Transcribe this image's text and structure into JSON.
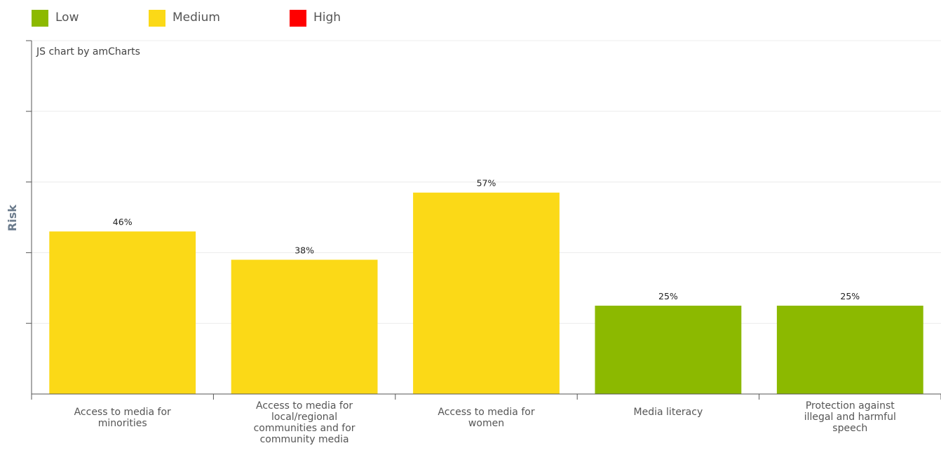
{
  "legend": [
    {
      "label": "Low",
      "color": "#8cb900"
    },
    {
      "label": "Medium",
      "color": "#fbd917"
    },
    {
      "label": "High",
      "color": "#ff0000"
    }
  ],
  "credit": "JS chart by amCharts",
  "chart_data": {
    "type": "bar",
    "title": "",
    "xlabel": "",
    "ylabel": "Risk",
    "ylim": [
      0,
      100
    ],
    "grid": true,
    "legend_position": "top-left",
    "categories": [
      [
        "Access to media for",
        "minorities"
      ],
      [
        "Access to media for",
        "local/regional",
        "communities and for",
        "community media"
      ],
      [
        "Access to media for",
        "women"
      ],
      [
        "Media literacy"
      ],
      [
        "Protection against",
        "illegal and harmful",
        "speech"
      ]
    ],
    "values": [
      46,
      38,
      57,
      25,
      25
    ],
    "data_labels": [
      "46%",
      "38%",
      "57%",
      "25%",
      "25%"
    ],
    "risk_levels": [
      "Medium",
      "Medium",
      "Medium",
      "Low",
      "Low"
    ]
  }
}
